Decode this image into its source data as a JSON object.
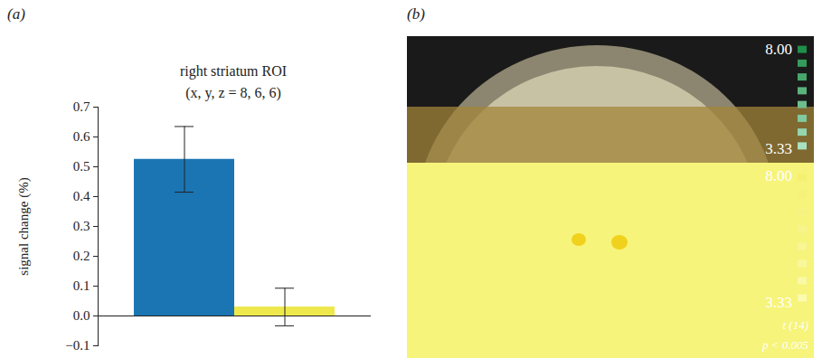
{
  "panel_labels": [
    "(a)",
    "(b)"
  ],
  "chart_data": {
    "type": "bar",
    "title": "right striatum ROI",
    "subtitle": "(x, y, z = 8, 6, 6)",
    "y_label": "signal change (%)",
    "categories": [
      null,
      null
    ],
    "values": [
      0.525,
      0.03
    ],
    "errors": [
      0.11,
      0.063
    ],
    "colors": [
      "#1b75b3",
      "#eee84c"
    ],
    "ylim": [
      -0.1,
      0.7
    ],
    "yticks": [
      -0.1,
      0,
      0.1,
      0.2,
      0.3,
      0.4,
      0.5,
      0.6,
      0.7
    ]
  },
  "brain_image": {
    "color_bars": [
      {
        "min": {
          "value": 3.33,
          "label": "3.33"
        },
        "max": {
          "value": 8,
          "label": "8.00"
        }
      },
      {
        "min": {
          "value": 3.33,
          "label": "3.33"
        },
        "max": {
          "value": 8,
          "label": "8.00"
        }
      }
    ],
    "statistic": "t (14)",
    "threshold": "p < 0.005"
  }
}
